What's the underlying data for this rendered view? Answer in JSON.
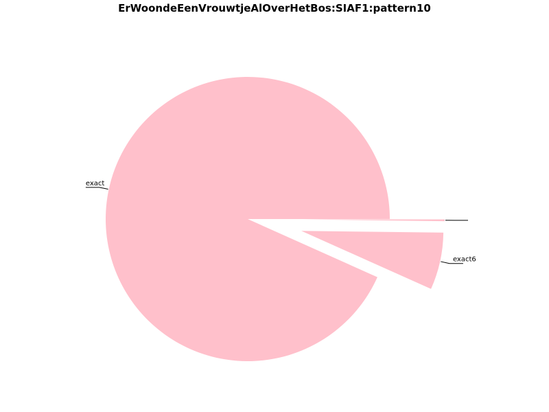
{
  "chart_data": {
    "type": "pie",
    "title": "ErWoondeEenVrouwtjeAlOverHetBos:SIAF1:pattern10",
    "slices": [
      {
        "label": "exact",
        "value": 93.3,
        "exploded": false
      },
      {
        "label": "exact6",
        "value": 6.5,
        "exploded": true
      },
      {
        "label": "",
        "value": 0.2,
        "exploded": true
      }
    ],
    "start_angle_deg": 0,
    "direction": "counterclockwise",
    "colors": {
      "slice": "#ffc0cb",
      "leader": "#000000"
    }
  }
}
